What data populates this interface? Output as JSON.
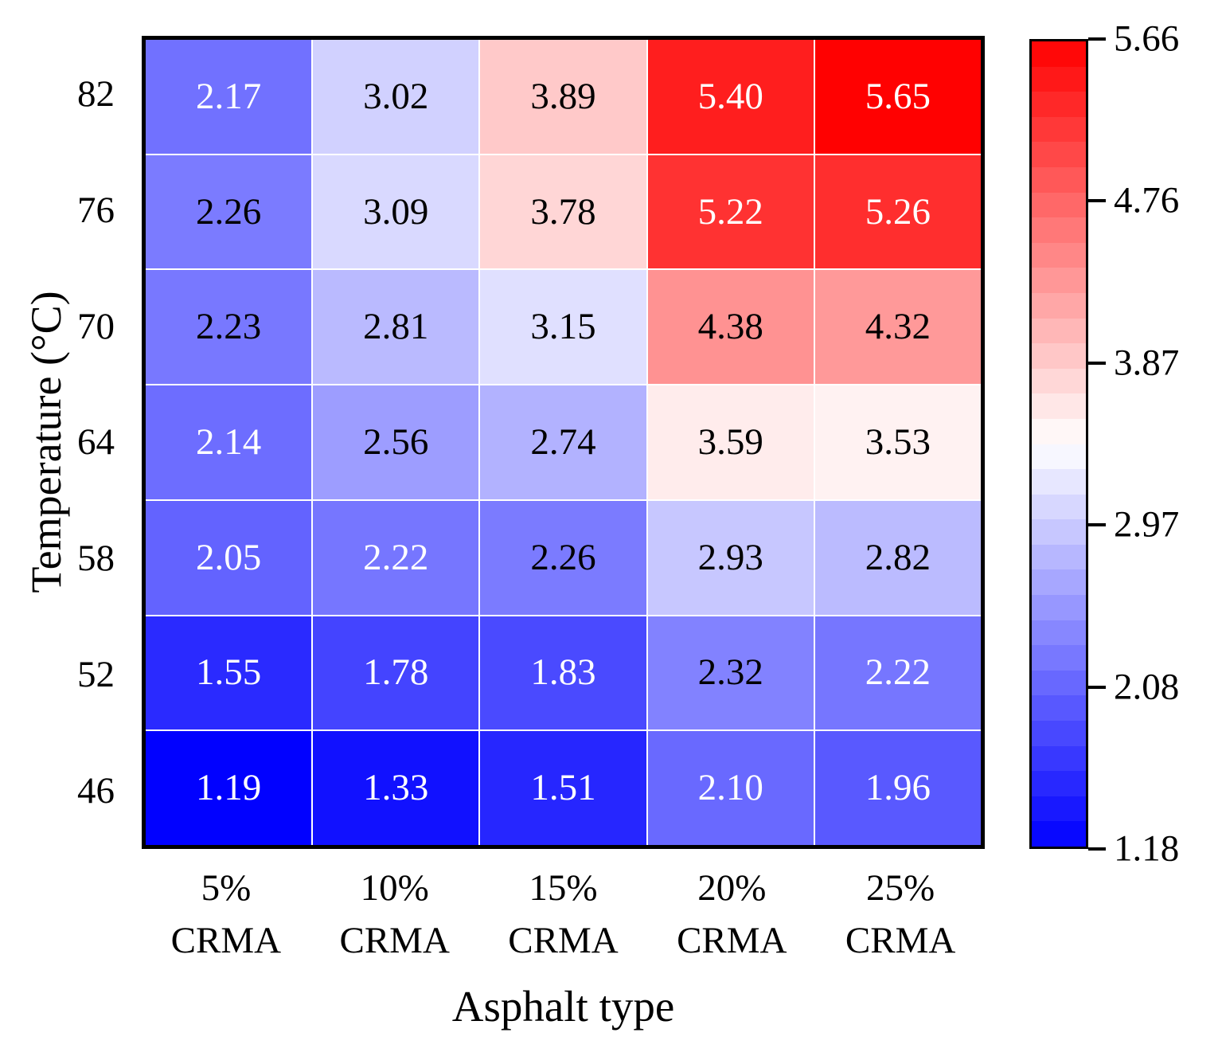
{
  "figure": {
    "background": "#ffffff",
    "border_color": "#000000",
    "grid_line_color": "#ffffff"
  },
  "chart_data": {
    "type": "heatmap",
    "title": "",
    "xlabel": "Asphalt type",
    "ylabel": "Temperature (°C)",
    "x_categories": [
      [
        "5%",
        "CRMA"
      ],
      [
        "10%",
        "CRMA"
      ],
      [
        "15%",
        "CRMA"
      ],
      [
        "20%",
        "CRMA"
      ],
      [
        "25%",
        "CRMA"
      ]
    ],
    "y_categories": [
      "82",
      "76",
      "70",
      "64",
      "58",
      "52",
      "46"
    ],
    "values": [
      [
        2.17,
        3.02,
        3.89,
        5.4,
        5.65
      ],
      [
        2.26,
        3.09,
        3.78,
        5.22,
        5.26
      ],
      [
        2.23,
        2.81,
        3.15,
        4.38,
        4.32
      ],
      [
        2.14,
        2.56,
        2.74,
        3.59,
        3.53
      ],
      [
        2.05,
        2.22,
        2.26,
        2.93,
        2.82
      ],
      [
        1.55,
        1.78,
        1.83,
        2.32,
        2.22
      ],
      [
        1.19,
        1.33,
        1.51,
        2.1,
        1.96
      ]
    ],
    "labels": [
      [
        "2.17",
        "3.02",
        "3.89",
        "5.40",
        "5.65"
      ],
      [
        "2.26",
        "3.09",
        "3.78",
        "5.22",
        "5.26"
      ],
      [
        "2.23",
        "2.81",
        "3.15",
        "4.38",
        "4.32"
      ],
      [
        "2.14",
        "2.56",
        "2.74",
        "3.59",
        "3.53"
      ],
      [
        "2.05",
        "2.22",
        "2.26",
        "2.93",
        "2.82"
      ],
      [
        "1.55",
        "1.78",
        "1.83",
        "2.32",
        "2.22"
      ],
      [
        "1.19",
        "1.33",
        "1.51",
        "2.10",
        "1.96"
      ]
    ],
    "text_colors": [
      [
        "w",
        "b",
        "b",
        "w",
        "w"
      ],
      [
        "b",
        "b",
        "b",
        "w",
        "w"
      ],
      [
        "b",
        "b",
        "b",
        "b",
        "b"
      ],
      [
        "w",
        "b",
        "b",
        "b",
        "b"
      ],
      [
        "w",
        "w",
        "b",
        "b",
        "b"
      ],
      [
        "w",
        "w",
        "w",
        "b",
        "w"
      ],
      [
        "w",
        "w",
        "w",
        "w",
        "w"
      ]
    ],
    "text_color_map": {
      "w": "#ffffff",
      "b": "#000000"
    },
    "colormap": "bwr",
    "colormap_min_color": "#0000ff",
    "colormap_mid_color": "#ffffff",
    "colormap_max_color": "#ff0000",
    "vmin": 1.18,
    "vmax": 5.66,
    "colorbar_ticks": [
      "5.66",
      "4.76",
      "3.87",
      "2.97",
      "2.08",
      "1.18"
    ],
    "colorbar_levels": 32,
    "legend_position": "right",
    "grid": true
  }
}
